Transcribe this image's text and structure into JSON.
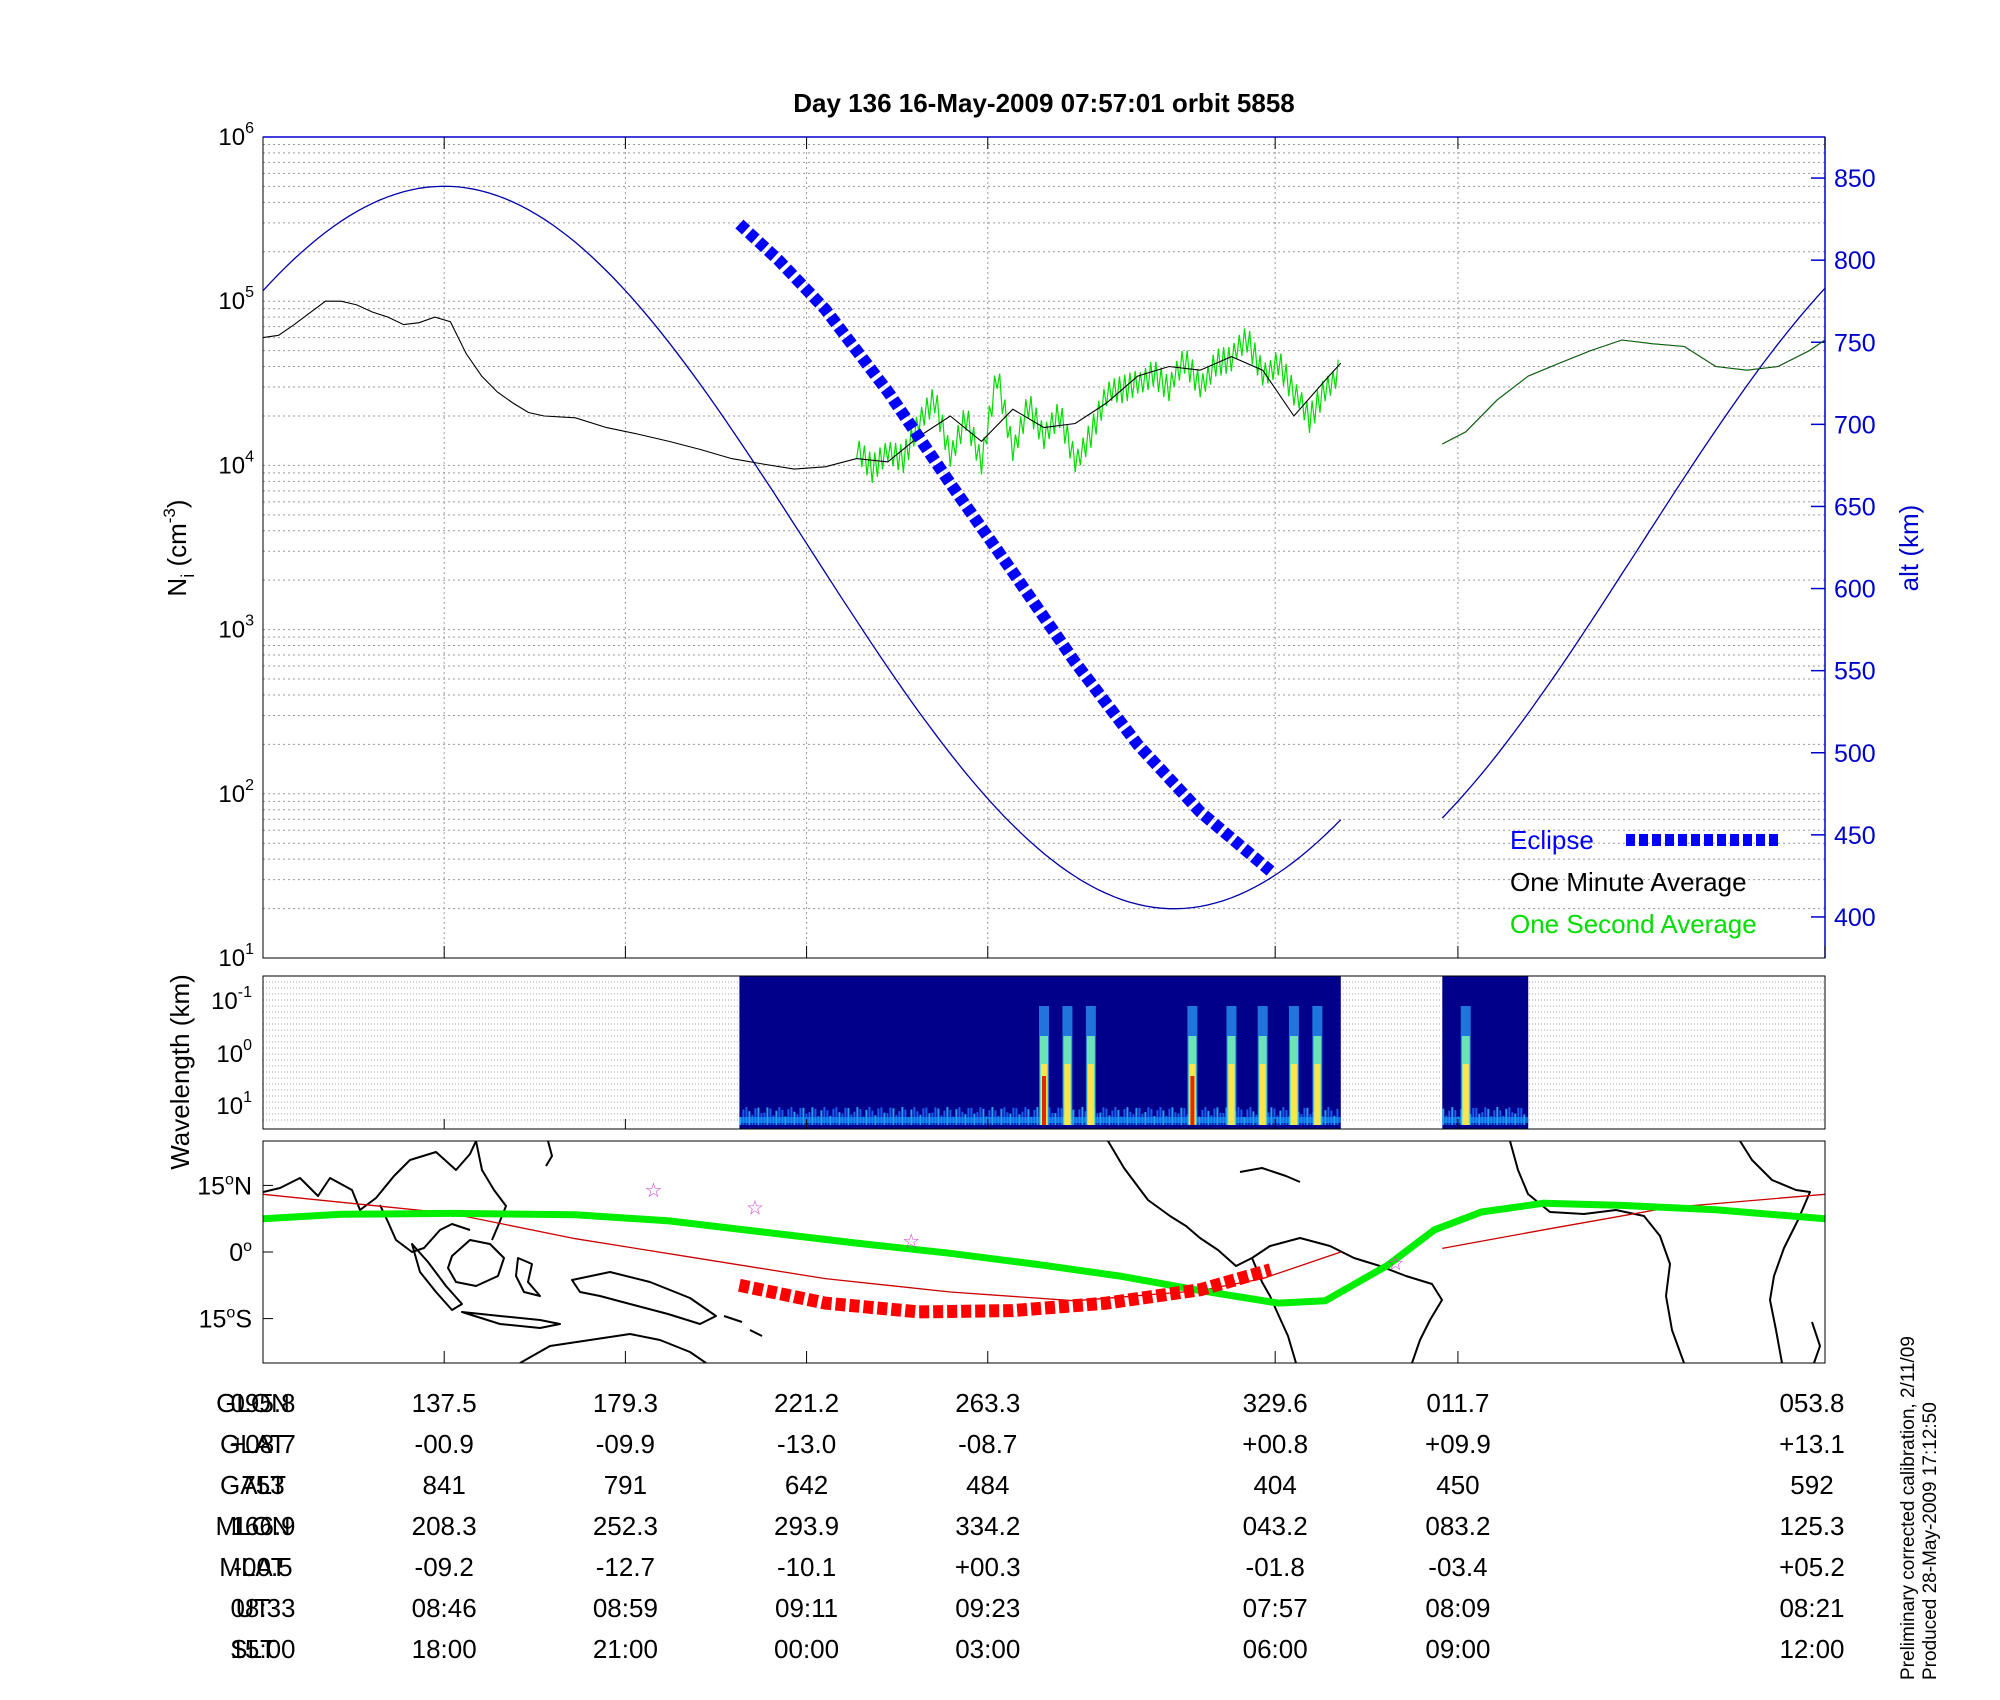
{
  "title": "Day 136  16-May-2009 07:57:01   orbit 5858",
  "colors": {
    "one_minute": "#000000",
    "one_second": "#00dd00",
    "eclipse": "#0000ff",
    "altitude": "#0000aa",
    "track": "#00ee00",
    "track_eclipse": "#ff0000",
    "subtrack": "#cc0000",
    "stars": "#cc44cc",
    "spectrogram_bg": "#00008b"
  },
  "chart_data": [
    {
      "type": "line",
      "panel": "density",
      "ylabel": "N",
      "ylabel_sub": "i",
      "ylabel_unit": " (cm",
      "ylabel_exp": "-3",
      "ylabel_close": ")",
      "y_scale": "log",
      "ylim": [
        10,
        1000000
      ],
      "ytick_base": "10",
      "ytick_exponents": [
        "1",
        "2",
        "3",
        "4",
        "5",
        "6"
      ],
      "y2label": "alt (km)",
      "y2lim": [
        375,
        875
      ],
      "y2ticks": [
        "400",
        "450",
        "500",
        "550",
        "600",
        "650",
        "700",
        "750",
        "800",
        "850"
      ],
      "x_labels": [
        "095.8",
        "137.5",
        "179.3",
        "221.2",
        "263.3",
        "329.6",
        "011.7",
        "053.8"
      ],
      "xlim": [
        0,
        100
      ],
      "grid": true,
      "legend_placement": "bottom-right",
      "legend": [
        "Eclipse",
        "One Minute Average",
        "One Second Average"
      ],
      "series": [
        {
          "name": "One Minute Average",
          "x": [
            0,
            1,
            2,
            3,
            4,
            5,
            6,
            7,
            8,
            9,
            10,
            11,
            12,
            13,
            14,
            15,
            16,
            17,
            18,
            20,
            22,
            24,
            26,
            28,
            30,
            32,
            34,
            36,
            38,
            40,
            42,
            44,
            46,
            48,
            50,
            52,
            54,
            56,
            58,
            60,
            62,
            64,
            66,
            68,
            69
          ],
          "y": [
            60000,
            62000,
            72000,
            85000,
            100000,
            100000,
            95000,
            86000,
            80000,
            72000,
            74000,
            80000,
            75000,
            48000,
            35000,
            28000,
            24000,
            21000,
            20000,
            19500,
            17000,
            15500,
            14000,
            12500,
            11000,
            10200,
            9500,
            9800,
            11000,
            10500,
            15000,
            20000,
            14000,
            22000,
            17000,
            18000,
            24000,
            35000,
            40000,
            38000,
            46000,
            38000,
            20000,
            33000,
            42000
          ]
        },
        {
          "name": "One Second Average",
          "x": [
            38,
            39,
            40,
            41,
            42,
            43,
            44,
            45,
            46,
            47,
            48,
            49,
            50,
            51,
            52,
            53,
            54,
            55,
            56,
            57,
            58,
            59,
            60,
            61,
            62,
            63,
            64,
            65,
            66,
            67,
            68,
            69
          ],
          "y": [
            11000,
            9500,
            14000,
            11000,
            16000,
            25000,
            13000,
            20000,
            9000,
            35000,
            14000,
            24000,
            13000,
            20000,
            12000,
            16000,
            24000,
            28000,
            36000,
            38000,
            26000,
            42000,
            34000,
            44000,
            40000,
            56000,
            40000,
            45000,
            25000,
            18000,
            32000,
            42000
          ]
        },
        {
          "name": "One Minute Average (after gap)",
          "x": [
            75.5,
            77,
            79,
            81,
            83,
            85,
            87,
            89,
            91,
            93,
            95,
            97,
            99,
            100
          ],
          "y": [
            13500,
            16000,
            25000,
            35000,
            42000,
            50000,
            58000,
            55000,
            53000,
            40000,
            38000,
            40000,
            50000,
            58000
          ]
        },
        {
          "name": "Eclipse",
          "axis": "right",
          "x": [
            30.5,
            33,
            36,
            40,
            44,
            48,
            52,
            56,
            60,
            64.5
          ],
          "y": [
            822,
            800,
            770,
            720,
            664,
            610,
            555,
            505,
            464,
            428
          ]
        }
      ]
    },
    {
      "type": "heatmap",
      "panel": "spectrogram",
      "ylabel": "Wavelength (km)",
      "ytick_base": "10",
      "ytick_exponents": [
        "-1",
        "0",
        "1"
      ],
      "segments_x": [
        [
          30.5,
          69
        ],
        [
          75.5,
          81
        ]
      ],
      "bursts_x": [
        50,
        51.5,
        53,
        59.5,
        62,
        64,
        66,
        67.5,
        77
      ]
    },
    {
      "type": "line",
      "panel": "map",
      "y_ticks": [
        "15",
        "0",
        "15"
      ],
      "y_tick_suffix": [
        "N",
        "",
        "S"
      ],
      "ylim": [
        -25,
        25
      ],
      "xlim": [
        0,
        100
      ],
      "series": [
        {
          "name": "magnetic track",
          "x": [
            0,
            5,
            12,
            20,
            26,
            32,
            38,
            44,
            50,
            55,
            60,
            65,
            68,
            72,
            75,
            78,
            82,
            87,
            93,
            100
          ],
          "y": [
            7.5,
            8.5,
            8.7,
            8.4,
            7.0,
            4.5,
            2.0,
            -0.3,
            -3.0,
            -5.5,
            -8.7,
            -11.5,
            -11,
            -3,
            5,
            9,
            11,
            10.5,
            9.5,
            7.5
          ]
        },
        {
          "name": "eclipse track",
          "x": [
            30.5,
            36,
            42,
            48,
            54,
            60,
            64.5
          ],
          "y": [
            -7.5,
            -11.5,
            -13.5,
            -13.2,
            -11.5,
            -8.5,
            -4.0
          ]
        },
        {
          "name": "ground track",
          "x": [
            0,
            12,
            20,
            28,
            36,
            44,
            52,
            60,
            64,
            69,
            75.5,
            82,
            90,
            100
          ],
          "y": [
            13,
            8.7,
            3,
            -1.5,
            -6,
            -9,
            -11,
            -8.7,
            -6,
            0,
            0.8,
            5,
            10,
            13
          ]
        }
      ],
      "stars": [
        [
          25,
          14
        ],
        [
          31.5,
          10
        ],
        [
          41.5,
          2.5
        ],
        [
          72.5,
          -2.5
        ]
      ]
    },
    {
      "type": "table",
      "panel": "orbit-table",
      "columns_x": [
        0,
        11.6,
        23.2,
        34.8,
        46.4,
        64.8,
        76.5,
        100
      ],
      "rows": [
        {
          "label": "GLON",
          "values": [
            "095.8",
            "137.5",
            "179.3",
            "221.2",
            "263.3",
            "329.6",
            "011.7",
            "053.8"
          ]
        },
        {
          "label": "GLAT",
          "values": [
            "+08.7",
            "-00.9",
            "-09.9",
            "-13.0",
            "-08.7",
            "+00.8",
            "+09.9",
            "+13.1"
          ]
        },
        {
          "label": "GALT",
          "values": [
            "753",
            "841",
            "791",
            "642",
            "484",
            "404",
            "450",
            "592"
          ]
        },
        {
          "label": "MLON",
          "values": [
            "166.9",
            "208.3",
            "252.3",
            "293.9",
            "334.2",
            "043.2",
            "083.2",
            "125.3"
          ]
        },
        {
          "label": "MLAT",
          "values": [
            "-00.5",
            "-09.2",
            "-12.7",
            "-10.1",
            "+00.3",
            "-01.8",
            "-03.4",
            "+05.2"
          ]
        },
        {
          "label": "UT",
          "values": [
            "08:33",
            "08:46",
            "08:59",
            "09:11",
            "09:23",
            "07:57",
            "08:09",
            "08:21"
          ]
        },
        {
          "label": "SLT",
          "values": [
            "15:00",
            "18:00",
            "21:00",
            "00:00",
            "03:00",
            "06:00",
            "09:00",
            "12:00"
          ]
        }
      ]
    }
  ],
  "footnote": [
    "Preliminary corrected calibration, 2/11/09",
    "Produced 28-May-2009 17:12:50"
  ]
}
